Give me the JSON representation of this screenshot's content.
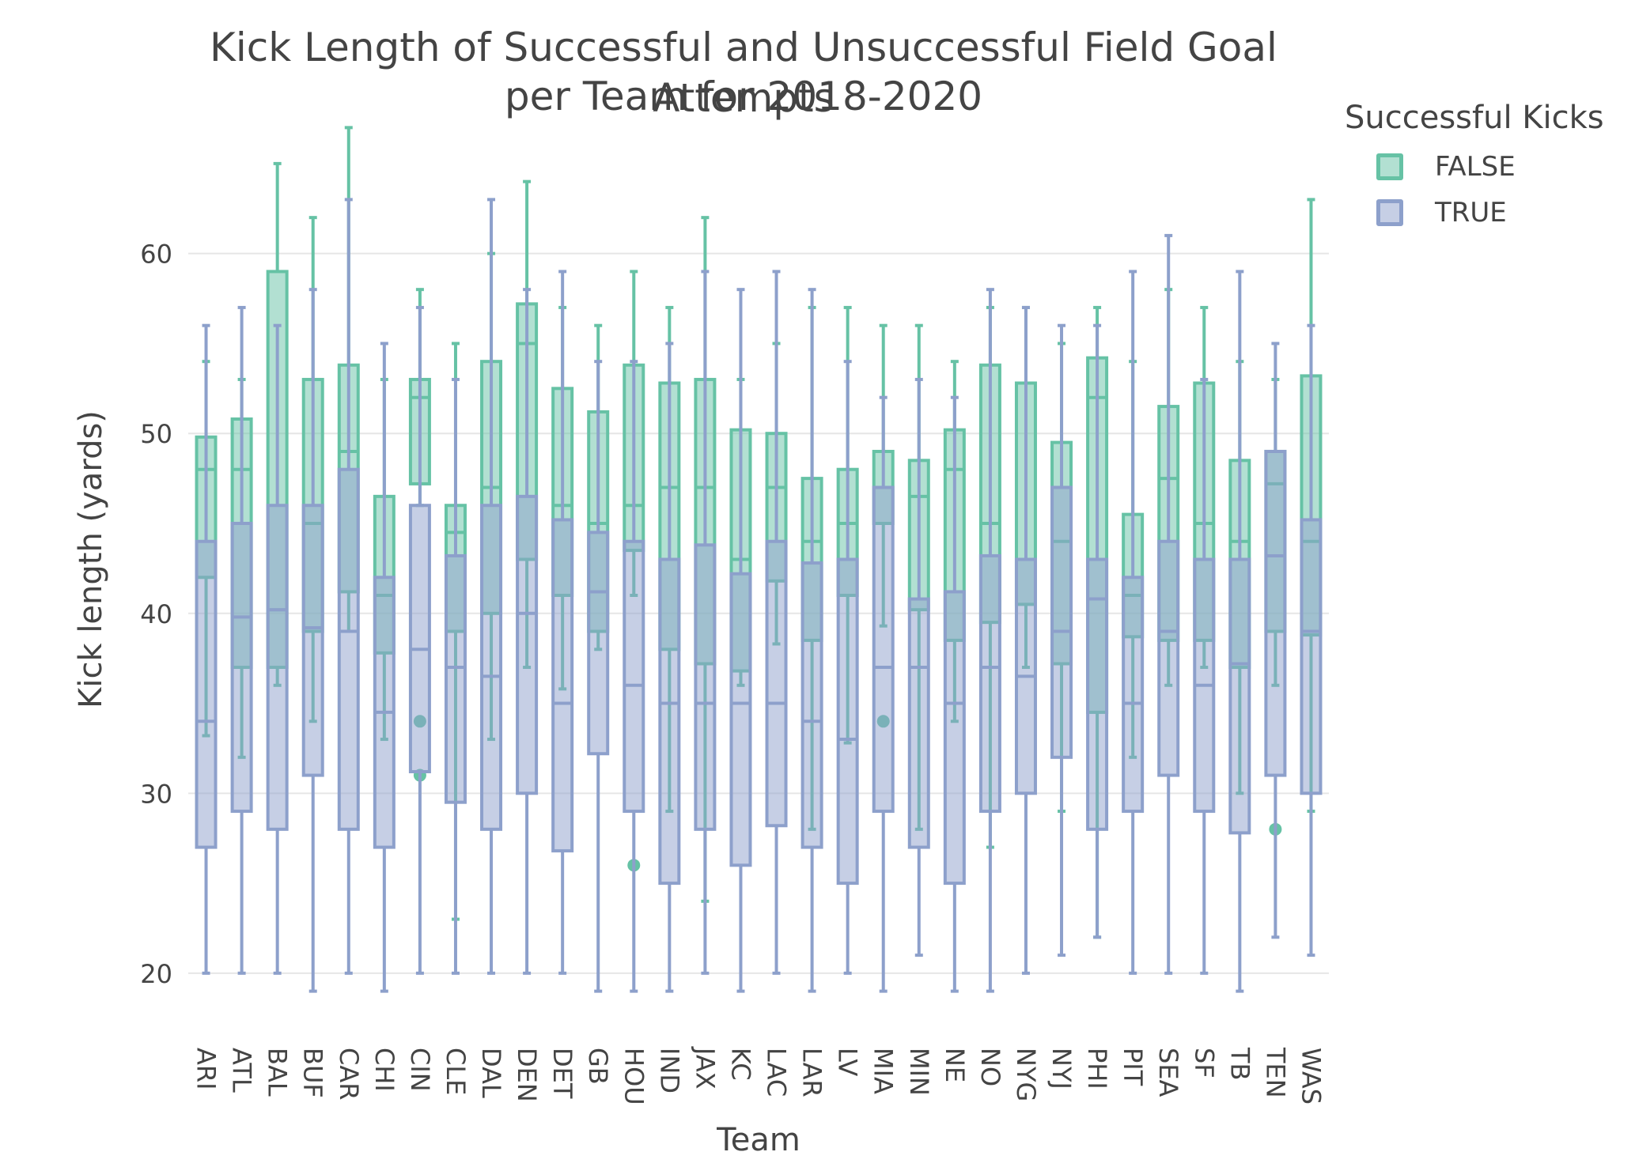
{
  "chart_data": {
    "type": "box",
    "title_line1": "Kick Length of Successful and Unsuccessful Field Goal Attempts",
    "title_line2": "per Team for 2018-2020",
    "xlabel": "Team",
    "ylabel": "Kick length (yards)",
    "ylim": [
      18.5,
      67.5
    ],
    "yticks": [
      20,
      30,
      40,
      50,
      60
    ],
    "grid": true,
    "legend": {
      "title": "Successful Kicks",
      "placement": "top-right"
    },
    "categories": [
      "ARI",
      "ATL",
      "BAL",
      "BUF",
      "CAR",
      "CHI",
      "CIN",
      "CLE",
      "DAL",
      "DEN",
      "DET",
      "GB",
      "HOU",
      "IND",
      "JAX",
      "KC",
      "LAC",
      "LAR",
      "LV",
      "MIA",
      "MIN",
      "NE",
      "NO",
      "NYG",
      "NYJ",
      "PHI",
      "PIT",
      "SEA",
      "SF",
      "TB",
      "TEN",
      "WAS"
    ],
    "series": [
      {
        "name": "FALSE",
        "color": "#66c2a5",
        "boxes": [
          {
            "min": 33.2,
            "q1": 42,
            "median": 48,
            "q3": 49.8,
            "max": 54,
            "outliers": []
          },
          {
            "min": 32,
            "q1": 37,
            "median": 48,
            "q3": 50.8,
            "max": 53,
            "outliers": []
          },
          {
            "min": 36,
            "q1": 37,
            "median": 40.2,
            "q3": 59,
            "max": 65,
            "outliers": []
          },
          {
            "min": 34,
            "q1": 39,
            "median": 45,
            "q3": 53,
            "max": 62,
            "outliers": []
          },
          {
            "min": 39,
            "q1": 41.2,
            "median": 49,
            "q3": 53.8,
            "max": 67,
            "outliers": []
          },
          {
            "min": 33,
            "q1": 37.8,
            "median": 41,
            "q3": 46.5,
            "max": 53,
            "outliers": []
          },
          {
            "min": 46,
            "q1": 47.2,
            "median": 52,
            "q3": 53,
            "max": 58,
            "outliers": [
              34,
              31
            ]
          },
          {
            "min": 23,
            "q1": 39,
            "median": 44.5,
            "q3": 46,
            "max": 55,
            "outliers": []
          },
          {
            "min": 33,
            "q1": 40,
            "median": 47,
            "q3": 54,
            "max": 60,
            "outliers": []
          },
          {
            "min": 37,
            "q1": 43,
            "median": 55,
            "q3": 57.2,
            "max": 64,
            "outliers": []
          },
          {
            "min": 35.8,
            "q1": 41,
            "median": 46,
            "q3": 52.5,
            "max": 57,
            "outliers": []
          },
          {
            "min": 38,
            "q1": 39,
            "median": 45,
            "q3": 51.2,
            "max": 56,
            "outliers": []
          },
          {
            "min": 41,
            "q1": 43.5,
            "median": 46,
            "q3": 53.8,
            "max": 59,
            "outliers": [
              26
            ]
          },
          {
            "min": 29,
            "q1": 38,
            "median": 47,
            "q3": 52.8,
            "max": 57,
            "outliers": []
          },
          {
            "min": 24,
            "q1": 37.2,
            "median": 47,
            "q3": 53,
            "max": 62,
            "outliers": []
          },
          {
            "min": 36,
            "q1": 36.8,
            "median": 43,
            "q3": 50.2,
            "max": 53,
            "outliers": []
          },
          {
            "min": 38.3,
            "q1": 41.8,
            "median": 47,
            "q3": 50,
            "max": 55,
            "outliers": []
          },
          {
            "min": 28,
            "q1": 38.5,
            "median": 44,
            "q3": 47.5,
            "max": 57,
            "outliers": []
          },
          {
            "min": 32.8,
            "q1": 41,
            "median": 45,
            "q3": 48,
            "max": 57,
            "outliers": []
          },
          {
            "min": 39.3,
            "q1": 45,
            "median": 47,
            "q3": 49,
            "max": 56,
            "outliers": [
              34
            ]
          },
          {
            "min": 28,
            "q1": 40.2,
            "median": 46.5,
            "q3": 48.5,
            "max": 56,
            "outliers": []
          },
          {
            "min": 34,
            "q1": 38.5,
            "median": 48,
            "q3": 50.2,
            "max": 54,
            "outliers": []
          },
          {
            "min": 27,
            "q1": 39.5,
            "median": 45,
            "q3": 53.8,
            "max": 57,
            "outliers": []
          },
          {
            "min": 37,
            "q1": 40.5,
            "median": 43,
            "q3": 52.8,
            "max": 57,
            "outliers": []
          },
          {
            "min": 29,
            "q1": 37.2,
            "median": 44,
            "q3": 49.5,
            "max": 55,
            "outliers": []
          },
          {
            "min": 22,
            "q1": 34.5,
            "median": 52,
            "q3": 54.2,
            "max": 57,
            "outliers": []
          },
          {
            "min": 32,
            "q1": 38.7,
            "median": 41,
            "q3": 45.5,
            "max": 54,
            "outliers": []
          },
          {
            "min": 36,
            "q1": 38.5,
            "median": 47.5,
            "q3": 51.5,
            "max": 58,
            "outliers": []
          },
          {
            "min": 37,
            "q1": 38.5,
            "median": 45,
            "q3": 52.8,
            "max": 57,
            "outliers": []
          },
          {
            "min": 30,
            "q1": 37,
            "median": 44,
            "q3": 48.5,
            "max": 54,
            "outliers": []
          },
          {
            "min": 36,
            "q1": 39,
            "median": 47.2,
            "q3": 49,
            "max": 53,
            "outliers": [
              28
            ]
          },
          {
            "min": 29,
            "q1": 38.8,
            "median": 44,
            "q3": 53.2,
            "max": 63,
            "outliers": []
          }
        ]
      },
      {
        "name": "TRUE",
        "color": "#8da0cb",
        "boxes": [
          {
            "min": 20,
            "q1": 27,
            "median": 34,
            "q3": 44,
            "max": 56,
            "outliers": []
          },
          {
            "min": 20,
            "q1": 29,
            "median": 39.8,
            "q3": 45,
            "max": 57,
            "outliers": []
          },
          {
            "min": 20,
            "q1": 28,
            "median": 40.2,
            "q3": 46,
            "max": 56,
            "outliers": []
          },
          {
            "min": 19,
            "q1": 31,
            "median": 39.2,
            "q3": 46,
            "max": 58,
            "outliers": []
          },
          {
            "min": 20,
            "q1": 28,
            "median": 39,
            "q3": 48,
            "max": 63,
            "outliers": []
          },
          {
            "min": 19,
            "q1": 27,
            "median": 34.5,
            "q3": 42,
            "max": 55,
            "outliers": []
          },
          {
            "min": 20,
            "q1": 31.2,
            "median": 38,
            "q3": 46,
            "max": 57,
            "outliers": []
          },
          {
            "min": 20,
            "q1": 29.5,
            "median": 37,
            "q3": 43.2,
            "max": 53,
            "outliers": []
          },
          {
            "min": 20,
            "q1": 28,
            "median": 36.5,
            "q3": 46,
            "max": 63,
            "outliers": []
          },
          {
            "min": 20,
            "q1": 30,
            "median": 40,
            "q3": 46.5,
            "max": 58,
            "outliers": []
          },
          {
            "min": 20,
            "q1": 26.8,
            "median": 35,
            "q3": 45.2,
            "max": 59,
            "outliers": []
          },
          {
            "min": 19,
            "q1": 32.2,
            "median": 41.2,
            "q3": 44.5,
            "max": 54,
            "outliers": []
          },
          {
            "min": 19,
            "q1": 29,
            "median": 36,
            "q3": 44,
            "max": 54,
            "outliers": []
          },
          {
            "min": 19,
            "q1": 25,
            "median": 35,
            "q3": 43,
            "max": 55,
            "outliers": []
          },
          {
            "min": 20,
            "q1": 28,
            "median": 35,
            "q3": 43.8,
            "max": 59,
            "outliers": []
          },
          {
            "min": 19,
            "q1": 26,
            "median": 35,
            "q3": 42.2,
            "max": 58,
            "outliers": []
          },
          {
            "min": 20,
            "q1": 28.2,
            "median": 35,
            "q3": 44,
            "max": 59,
            "outliers": []
          },
          {
            "min": 19,
            "q1": 27,
            "median": 34,
            "q3": 42.8,
            "max": 58,
            "outliers": []
          },
          {
            "min": 20,
            "q1": 25,
            "median": 33,
            "q3": 43,
            "max": 54,
            "outliers": []
          },
          {
            "min": 19,
            "q1": 29,
            "median": 37,
            "q3": 47,
            "max": 52,
            "outliers": []
          },
          {
            "min": 21,
            "q1": 27,
            "median": 37,
            "q3": 40.8,
            "max": 53,
            "outliers": []
          },
          {
            "min": 19,
            "q1": 25,
            "median": 35,
            "q3": 41.2,
            "max": 52,
            "outliers": []
          },
          {
            "min": 19,
            "q1": 29,
            "median": 37,
            "q3": 43.2,
            "max": 58,
            "outliers": []
          },
          {
            "min": 20,
            "q1": 30,
            "median": 36.5,
            "q3": 43,
            "max": 57,
            "outliers": []
          },
          {
            "min": 21,
            "q1": 32,
            "median": 39,
            "q3": 47,
            "max": 56,
            "outliers": []
          },
          {
            "min": 22,
            "q1": 28,
            "median": 40.8,
            "q3": 43,
            "max": 56,
            "outliers": []
          },
          {
            "min": 20,
            "q1": 29,
            "median": 35,
            "q3": 42,
            "max": 59,
            "outliers": []
          },
          {
            "min": 20,
            "q1": 31,
            "median": 39,
            "q3": 44,
            "max": 61,
            "outliers": []
          },
          {
            "min": 20,
            "q1": 29,
            "median": 36,
            "q3": 43,
            "max": 53,
            "outliers": []
          },
          {
            "min": 19,
            "q1": 27.8,
            "median": 37.2,
            "q3": 43,
            "max": 59,
            "outliers": []
          },
          {
            "min": 22,
            "q1": 31,
            "median": 43.2,
            "q3": 49,
            "max": 55,
            "outliers": []
          },
          {
            "min": 21,
            "q1": 30,
            "median": 39,
            "q3": 45.2,
            "max": 56,
            "outliers": []
          }
        ]
      }
    ]
  }
}
